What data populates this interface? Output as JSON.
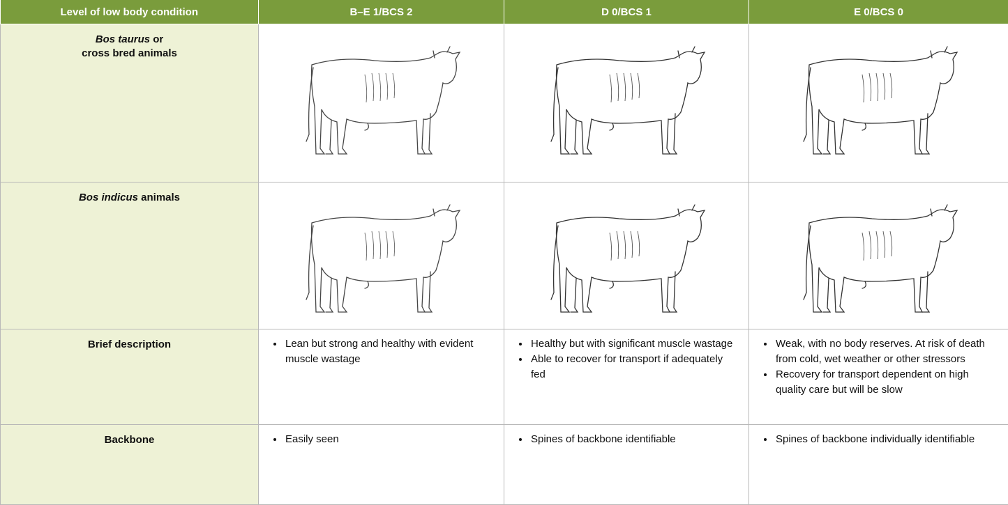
{
  "table": {
    "header": [
      "Level of low body condition",
      "B–E 1/BCS 2",
      "D 0/BCS 1",
      "E 0/BCS 0"
    ],
    "rows": [
      {
        "label": [
          "Bos taurus",
          "or",
          "cross bred animals"
        ]
      },
      {
        "label": [
          "Bos indicus",
          "animals"
        ]
      },
      {
        "label": [
          "Brief description"
        ],
        "cells": [
          [
            "Lean but strong and healthy with evident muscle wastage"
          ],
          [
            "Healthy but with significant muscle wastage",
            "Able to recover for transport if adequately fed"
          ],
          [
            "Weak, with no body reserves. At risk of death from cold, wet weather or other stressors",
            "Recovery for transport dependent on high quality care but will be slow"
          ]
        ]
      },
      {
        "label": [
          "Backbone"
        ],
        "cells": [
          [
            "Easily seen"
          ],
          [
            "Spines of backbone identifiable"
          ],
          [
            "Spines of backbone individually identifiable"
          ]
        ]
      }
    ]
  }
}
